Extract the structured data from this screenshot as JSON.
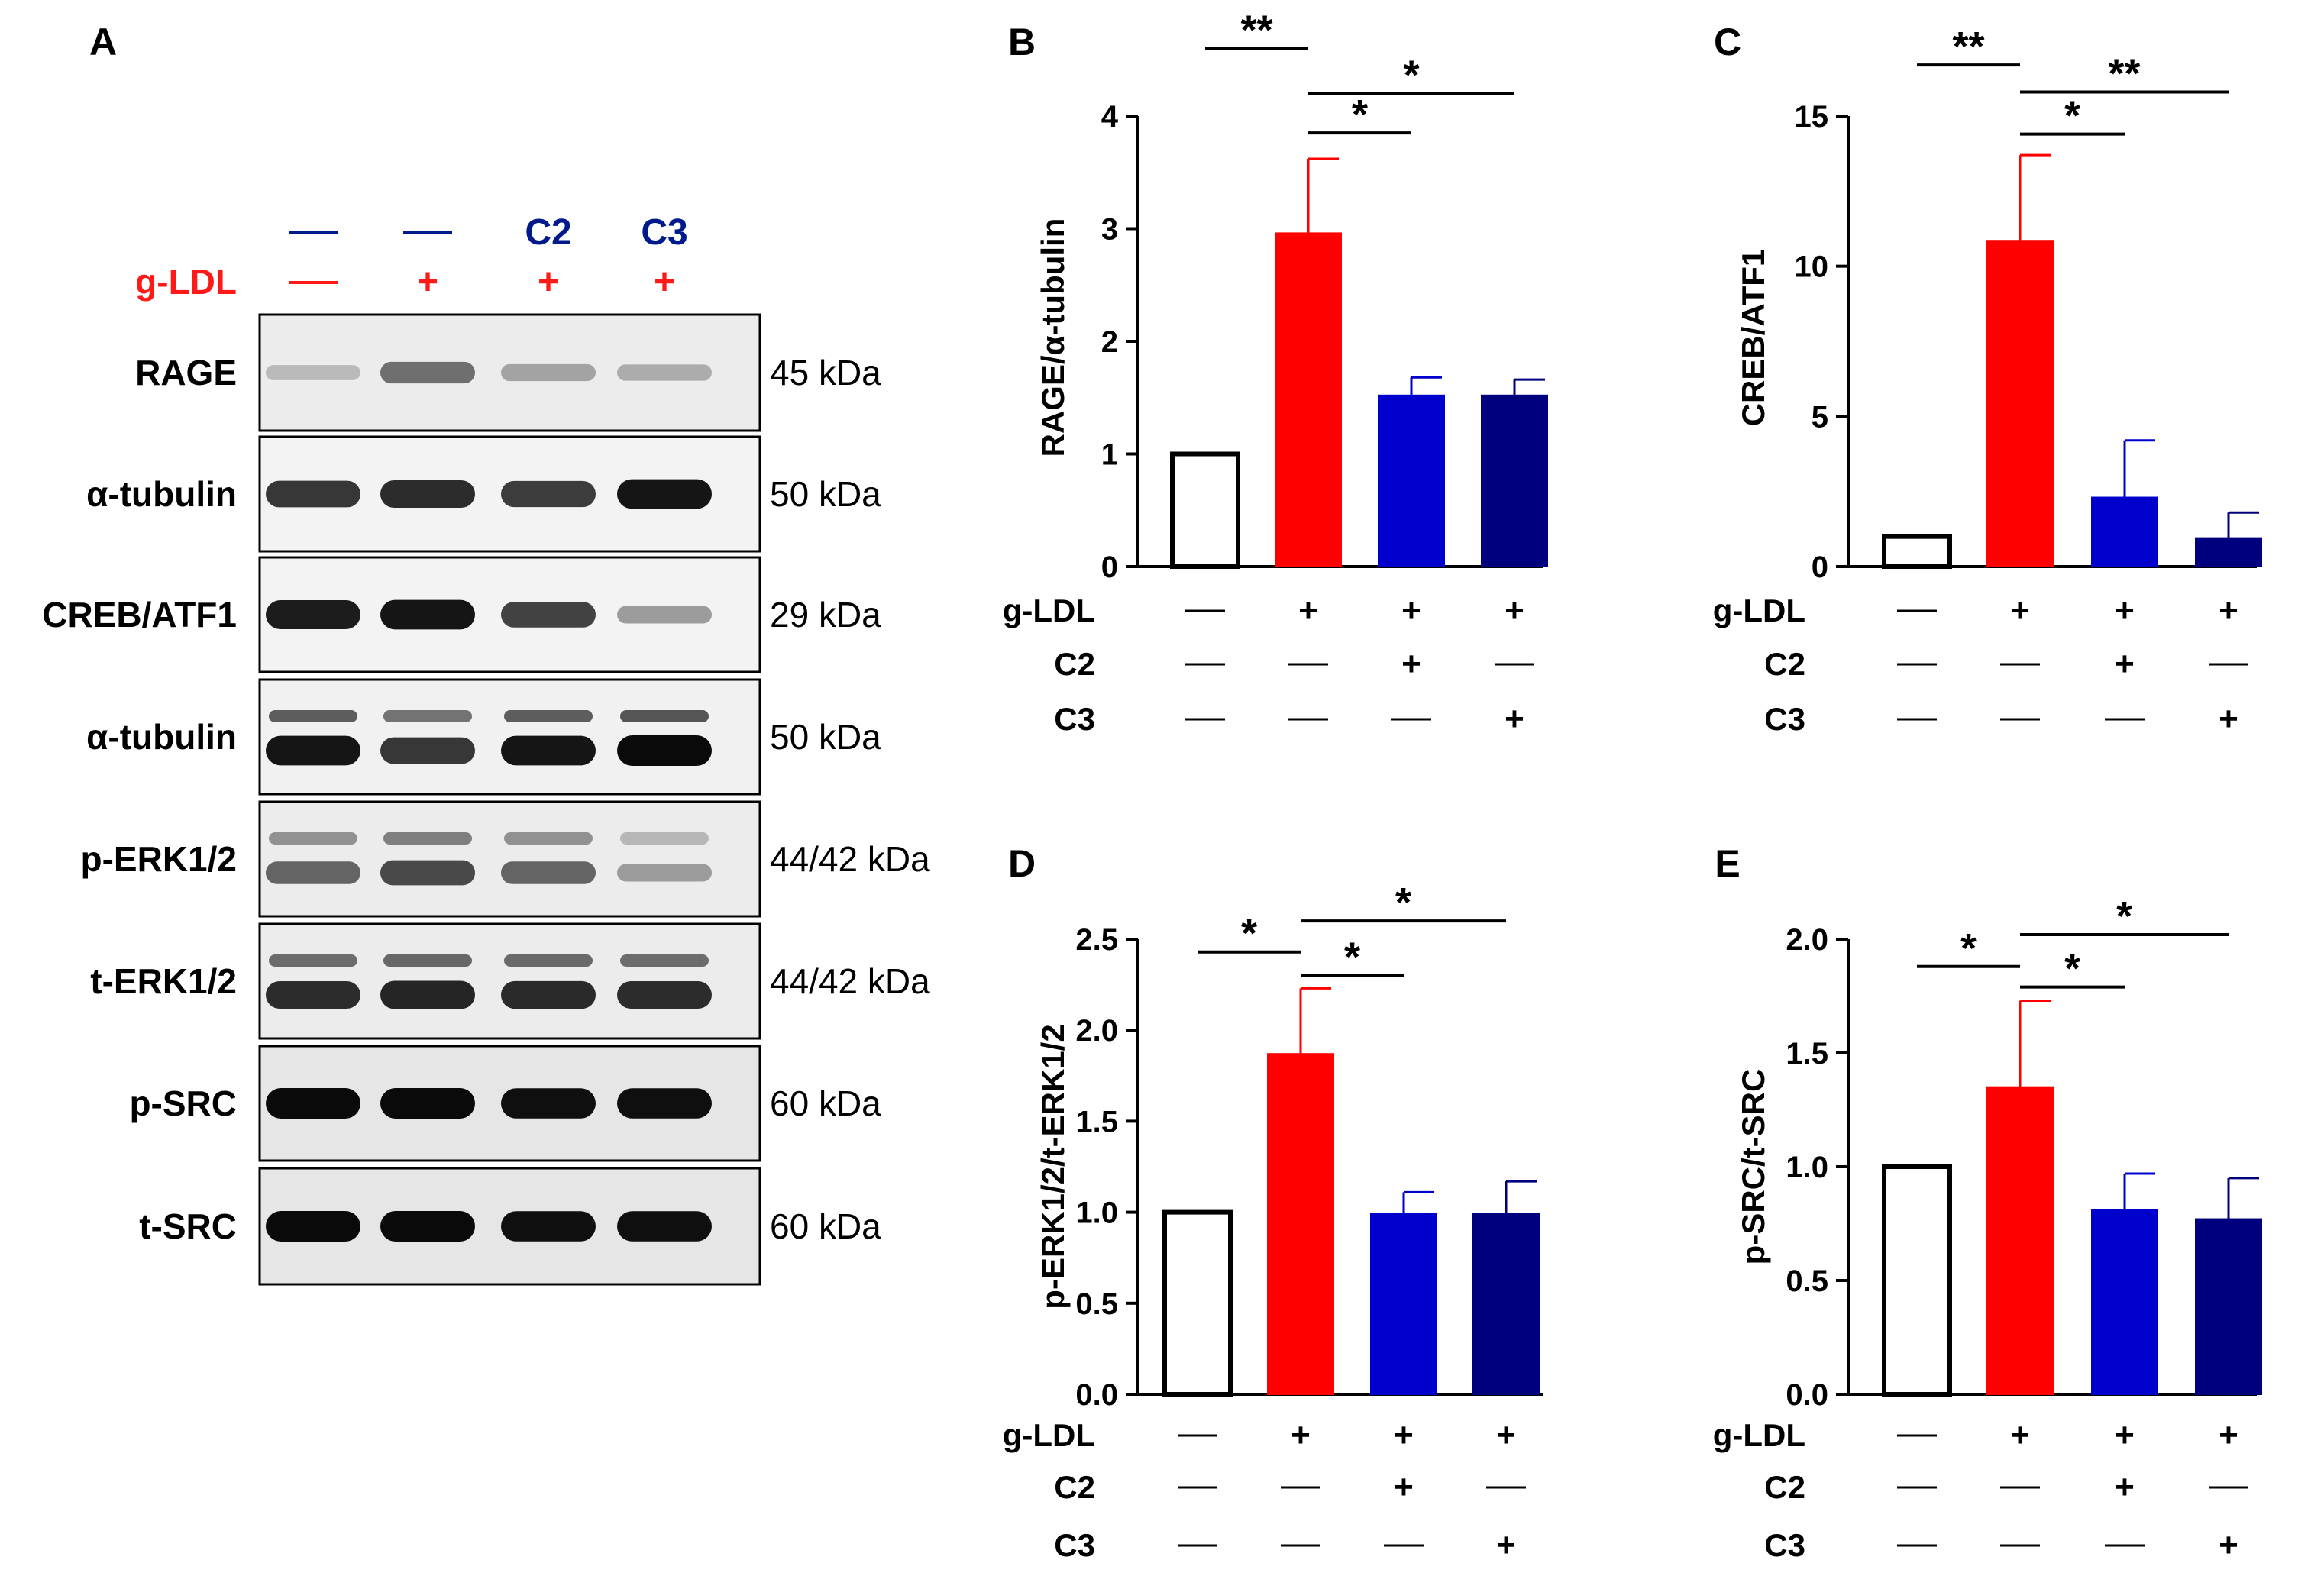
{
  "panel_a": {
    "letter": "A",
    "header_rows": [
      {
        "label": "",
        "cells": [
          "—",
          "—",
          "C2",
          "C3"
        ]
      },
      {
        "label": "g-LDL",
        "cells": [
          "—",
          "+",
          "+",
          "+"
        ]
      }
    ],
    "blots": [
      {
        "label": "RAGE",
        "kda": "45 kDa",
        "bands": [
          0.22,
          0.55,
          0.32,
          0.28
        ],
        "doublet": false,
        "bg": "#ececec"
      },
      {
        "label": "α-tubulin",
        "kda": "50 kDa",
        "bands": [
          0.8,
          0.85,
          0.78,
          0.95
        ],
        "doublet": false,
        "bg": "#f3f3f3"
      },
      {
        "label": "CREB/ATF1",
        "kda": "29 kDa",
        "bands": [
          0.92,
          0.95,
          0.75,
          0.35
        ],
        "doublet": false,
        "bg": "#f3f3f3"
      },
      {
        "label": "α-tubulin",
        "kda": "50 kDa",
        "bands": [
          0.95,
          0.8,
          0.95,
          1.0
        ],
        "doublet": true,
        "bg": "#f1f1f1"
      },
      {
        "label": "p-ERK1/2",
        "kda": "44/42 kDa",
        "bands": [
          0.6,
          0.72,
          0.6,
          0.35
        ],
        "doublet": true,
        "bg": "#ececec"
      },
      {
        "label": "t-ERK1/2",
        "kda": "44/42 kDa",
        "bands": [
          0.85,
          0.88,
          0.86,
          0.85
        ],
        "doublet": true,
        "bg": "#ececec"
      },
      {
        "label": "p-SRC",
        "kda": "60 kDa",
        "bands": [
          1.0,
          1.0,
          0.98,
          0.98
        ],
        "doublet": false,
        "bg": "#e6e6e6"
      },
      {
        "label": "t-SRC",
        "kda": "60 kDa",
        "bands": [
          1.0,
          1.0,
          0.98,
          0.98
        ],
        "doublet": false,
        "bg": "#e6e6e6"
      }
    ]
  },
  "table_rows": [
    {
      "label": "g-LDL",
      "cells": [
        "—",
        "+",
        "+",
        "+"
      ]
    },
    {
      "label": "C2",
      "cells": [
        "—",
        "—",
        "+",
        "—"
      ]
    },
    {
      "label": "C3",
      "cells": [
        "—",
        "—",
        "—",
        "+"
      ]
    }
  ],
  "chart_data": [
    {
      "panel": "B",
      "type": "bar",
      "title": "",
      "xlabel": "",
      "ylabel": "RAGE/α-tubulin",
      "ylim": [
        0,
        4
      ],
      "yticks": [
        0,
        1,
        2,
        3,
        4
      ],
      "ytick_labels": [
        "0",
        "1",
        "2",
        "3",
        "4"
      ],
      "values": [
        1.0,
        2.96,
        1.52,
        1.52
      ],
      "errors": [
        0,
        0.66,
        0.16,
        0.14
      ],
      "significance": [
        {
          "from": 0,
          "to": 1,
          "label": "**",
          "level": 4.6
        },
        {
          "from": 1,
          "to": 2,
          "label": "*",
          "level": 3.85
        },
        {
          "from": 1,
          "to": 3,
          "label": "*",
          "level": 4.2
        }
      ]
    },
    {
      "panel": "C",
      "type": "bar",
      "title": "",
      "xlabel": "",
      "ylabel": "CREB/ATF1",
      "ylim": [
        0,
        15
      ],
      "yticks": [
        0,
        5,
        10,
        15
      ],
      "ytick_labels": [
        "0",
        "5",
        "10",
        "15"
      ],
      "values": [
        1.0,
        10.85,
        2.3,
        0.95
      ],
      "errors": [
        0,
        2.85,
        1.9,
        0.85
      ],
      "significance": [
        {
          "from": 0,
          "to": 1,
          "label": "**",
          "level": 16.7
        },
        {
          "from": 1,
          "to": 2,
          "label": "*",
          "level": 14.4
        },
        {
          "from": 1,
          "to": 3,
          "label": "**",
          "level": 15.8
        }
      ]
    },
    {
      "panel": "D",
      "type": "bar",
      "title": "",
      "xlabel": "",
      "ylabel": "p-ERK1/2/t-ERK1/2",
      "ylim": [
        0,
        2.5
      ],
      "yticks": [
        0,
        0.5,
        1,
        1.5,
        2,
        2.5
      ],
      "ytick_labels": [
        "0.0",
        "0.5",
        "1.0",
        "1.5",
        "2.0",
        "2.5"
      ],
      "values": [
        1.0,
        1.87,
        0.99,
        0.99
      ],
      "errors": [
        0,
        0.36,
        0.12,
        0.18
      ],
      "significance": [
        {
          "from": 0,
          "to": 1,
          "label": "*",
          "level": 2.43
        },
        {
          "from": 1,
          "to": 2,
          "label": "*",
          "level": 2.3
        },
        {
          "from": 1,
          "to": 3,
          "label": "*",
          "level": 2.6
        }
      ]
    },
    {
      "panel": "E",
      "type": "bar",
      "title": "",
      "xlabel": "",
      "ylabel": "p-SRC/t-SRC",
      "ylim": [
        0,
        2
      ],
      "yticks": [
        0,
        0.5,
        1,
        1.5,
        2
      ],
      "ytick_labels": [
        "0.0",
        "0.5",
        "1.0",
        "1.5",
        "2.0"
      ],
      "values": [
        1.0,
        1.35,
        0.81,
        0.77
      ],
      "errors": [
        0,
        0.38,
        0.16,
        0.18
      ],
      "significance": [
        {
          "from": 0,
          "to": 1,
          "label": "*",
          "level": 1.88
        },
        {
          "from": 1,
          "to": 2,
          "label": "*",
          "level": 1.79
        },
        {
          "from": 1,
          "to": 3,
          "label": "*",
          "level": 2.02
        }
      ]
    }
  ],
  "colors": {
    "control": "#ffffff",
    "gldl": "#ff0000",
    "c2": "#0000cc",
    "c3": "#00007f",
    "header_c": "#001a8c",
    "gldl_text": "#ff1a1a",
    "axis": "#000000"
  }
}
